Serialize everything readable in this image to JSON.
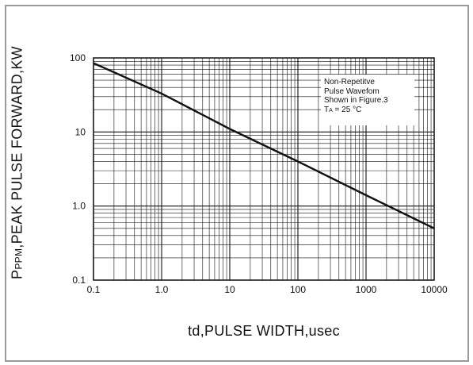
{
  "chart_data": {
    "type": "line",
    "title": "",
    "xlabel": "td,PULSE WIDTH,usec",
    "ylabel": {
      "prefix": "P",
      "subscript": "PPM",
      "text": ",PEAK PULSE FORWARD,KW"
    },
    "x_scale": "log",
    "y_scale": "log",
    "xlim": [
      0.1,
      10000
    ],
    "ylim": [
      0.1,
      100
    ],
    "x_ticks": [
      "0.1",
      "1.0",
      "10",
      "100",
      "1000",
      "10000"
    ],
    "y_ticks": [
      "0.1",
      "1.0",
      "10",
      "100"
    ],
    "grid": true,
    "series": [
      {
        "x": [
          0.1,
          1,
          10,
          100,
          1000,
          10000
        ],
        "y": [
          85,
          33,
          11,
          4.0,
          1.4,
          0.5
        ]
      }
    ],
    "annotation": {
      "line1": "Non-Repetitve",
      "line2": "Pulse Wavefom",
      "line3": "Shown in Figure.3",
      "prefix": "T",
      "subscript": "A",
      "value": " = 25 °C"
    }
  }
}
